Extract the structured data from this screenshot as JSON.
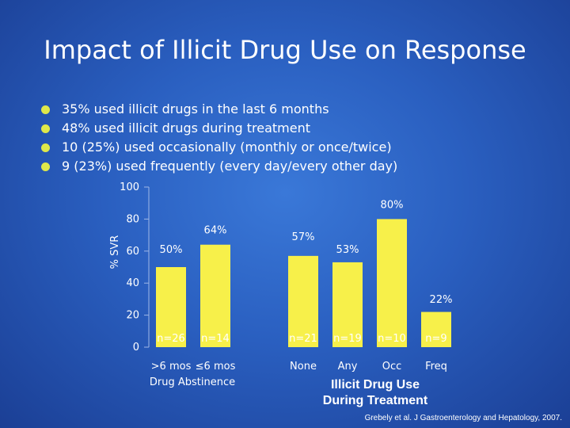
{
  "title": "Impact of Illicit Drug Use on Response",
  "bullets": [
    "35% used illicit drugs in the last 6 months",
    "48% used illicit drugs during treatment",
    "10 (25%) used occasionally (monthly or once/twice)",
    "9 (23%) used frequently (every day/every other day)"
  ],
  "colors": {
    "bar": "#f7f04a",
    "bullet": "#dfe84a"
  },
  "chart_data": {
    "type": "bar",
    "ylabel": "% SVR",
    "ylim": [
      0,
      100
    ],
    "yticks": [
      "0",
      "20",
      "40",
      "60",
      "80",
      "100"
    ],
    "categories": [
      ">6 mos",
      "≤6 mos",
      "None",
      "Any",
      "Occ",
      "Freq"
    ],
    "values": [
      50,
      64,
      57,
      53,
      80,
      22
    ],
    "value_labels": [
      "50%",
      "64%",
      "57%",
      "53%",
      "80%",
      "22%"
    ],
    "n_labels": [
      "n=26",
      "n=14",
      "n=21",
      "n=19",
      "n=10",
      "n=9"
    ],
    "groups": [
      "Drug Abstinence",
      "Illicit Drug Use During Treatment"
    ]
  },
  "citation": "Grebely et al. J Gastroenterology and Hepatology, 2007."
}
